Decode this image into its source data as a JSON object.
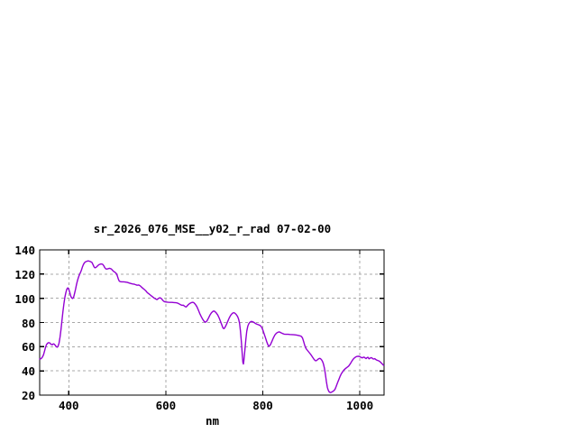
{
  "chart_data": {
    "type": "line",
    "title": "sr_2026_076_MSE__y02_r_rad 07-02-00",
    "xlabel": "nm",
    "ylabel": "",
    "xlim": [
      340,
      1050
    ],
    "ylim": [
      20,
      140
    ],
    "grid": true,
    "legend_position": "none",
    "line_color": "#9400d3",
    "grid_color": "#a8a8a8",
    "border_color": "#000000",
    "x_ticks": [
      {
        "value": 400,
        "label": "400",
        "grid": true
      },
      {
        "value": 600,
        "label": "600",
        "grid": true
      },
      {
        "value": 800,
        "label": "800",
        "grid": true
      },
      {
        "value": 1000,
        "label": "1000",
        "grid": true
      }
    ],
    "y_ticks": [
      {
        "value": 20,
        "label": "20",
        "grid": false
      },
      {
        "value": 40,
        "label": "40",
        "grid": true
      },
      {
        "value": 60,
        "label": "60",
        "grid": true
      },
      {
        "value": 80,
        "label": "80",
        "grid": true
      },
      {
        "value": 100,
        "label": "100",
        "grid": true
      },
      {
        "value": 120,
        "label": "120",
        "grid": true
      },
      {
        "value": 140,
        "label": "140",
        "grid": false
      }
    ],
    "series": [
      {
        "points": [
          [
            340,
            49.8
          ],
          [
            342,
            50.0
          ],
          [
            344,
            50.6
          ],
          [
            346,
            51.6
          ],
          [
            348,
            53.4
          ],
          [
            350,
            56.4
          ],
          [
            352,
            59.4
          ],
          [
            354,
            61.6
          ],
          [
            356,
            62.8
          ],
          [
            358,
            63.3
          ],
          [
            360,
            63.3
          ],
          [
            362,
            62.6
          ],
          [
            364,
            61.8
          ],
          [
            366,
            61.6
          ],
          [
            368,
            62.3
          ],
          [
            370,
            62.2
          ],
          [
            372,
            61.2
          ],
          [
            374,
            60.0
          ],
          [
            376,
            59.6
          ],
          [
            378,
            60.4
          ],
          [
            380,
            63.0
          ],
          [
            382,
            68.0
          ],
          [
            384,
            74.5
          ],
          [
            386,
            81.5
          ],
          [
            388,
            89.0
          ],
          [
            390,
            95.5
          ],
          [
            392,
            101.0
          ],
          [
            394,
            104.8
          ],
          [
            396,
            107.5
          ],
          [
            398,
            108.6
          ],
          [
            400,
            107.4
          ],
          [
            402,
            104.8
          ],
          [
            404,
            102.0
          ],
          [
            406,
            100.3
          ],
          [
            408,
            99.8
          ],
          [
            410,
            101.0
          ],
          [
            412,
            104.0
          ],
          [
            414,
            107.5
          ],
          [
            416,
            111.5
          ],
          [
            418,
            114.8
          ],
          [
            420,
            117.3
          ],
          [
            422,
            119.4
          ],
          [
            424,
            121.2
          ],
          [
            426,
            123.2
          ],
          [
            428,
            125.6
          ],
          [
            430,
            127.7
          ],
          [
            432,
            129.2
          ],
          [
            434,
            130.0
          ],
          [
            436,
            130.4
          ],
          [
            438,
            130.7
          ],
          [
            440,
            130.9
          ],
          [
            442,
            130.7
          ],
          [
            444,
            130.4
          ],
          [
            446,
            130.1
          ],
          [
            448,
            129.5
          ],
          [
            450,
            127.8
          ],
          [
            452,
            126.0
          ],
          [
            454,
            125.2
          ],
          [
            456,
            125.5
          ],
          [
            458,
            126.2
          ],
          [
            460,
            127.0
          ],
          [
            462,
            127.7
          ],
          [
            464,
            128.1
          ],
          [
            466,
            128.3
          ],
          [
            468,
            128.3
          ],
          [
            470,
            128.1
          ],
          [
            472,
            127.0
          ],
          [
            474,
            125.5
          ],
          [
            476,
            124.4
          ],
          [
            478,
            124.1
          ],
          [
            480,
            124.3
          ],
          [
            482,
            124.6
          ],
          [
            484,
            124.8
          ],
          [
            486,
            124.5
          ],
          [
            488,
            124.1
          ],
          [
            490,
            123.2
          ],
          [
            492,
            122.3
          ],
          [
            494,
            121.8
          ],
          [
            496,
            121.3
          ],
          [
            498,
            120.5
          ],
          [
            500,
            118.6
          ],
          [
            502,
            116.1
          ],
          [
            504,
            114.3
          ],
          [
            506,
            113.8
          ],
          [
            509,
            113.6
          ],
          [
            513,
            113.6
          ],
          [
            517,
            113.4
          ],
          [
            521,
            113.1
          ],
          [
            525,
            112.6
          ],
          [
            529,
            112.1
          ],
          [
            532,
            111.8
          ],
          [
            535,
            111.7
          ],
          [
            538,
            111.2
          ],
          [
            541,
            110.8
          ],
          [
            544,
            111.0
          ],
          [
            547,
            110.3
          ],
          [
            550,
            109.2
          ],
          [
            553,
            108.2
          ],
          [
            556,
            107.2
          ],
          [
            559,
            106.1
          ],
          [
            562,
            104.7
          ],
          [
            565,
            103.7
          ],
          [
            568,
            102.7
          ],
          [
            571,
            101.8
          ],
          [
            574,
            100.8
          ],
          [
            577,
            100.0
          ],
          [
            580,
            99.2
          ],
          [
            582,
            98.9
          ],
          [
            584,
            99.6
          ],
          [
            586,
            100.2
          ],
          [
            588,
            100.4
          ],
          [
            590,
            100.1
          ],
          [
            592,
            99.2
          ],
          [
            594,
            98.2
          ],
          [
            596,
            97.5
          ],
          [
            598,
            97.1
          ],
          [
            601,
            96.9
          ],
          [
            605,
            96.7
          ],
          [
            609,
            96.6
          ],
          [
            613,
            96.6
          ],
          [
            617,
            96.5
          ],
          [
            621,
            96.3
          ],
          [
            624,
            96.1
          ],
          [
            627,
            95.5
          ],
          [
            630,
            94.8
          ],
          [
            633,
            94.2
          ],
          [
            636,
            94.3
          ],
          [
            638,
            93.7
          ],
          [
            640,
            93.1
          ],
          [
            642,
            92.8
          ],
          [
            644,
            93.7
          ],
          [
            647,
            95.0
          ],
          [
            650,
            95.9
          ],
          [
            653,
            96.5
          ],
          [
            656,
            96.7
          ],
          [
            658,
            96.3
          ],
          [
            661,
            95.0
          ],
          [
            664,
            93.2
          ],
          [
            667,
            90.5
          ],
          [
            670,
            87.5
          ],
          [
            673,
            84.9
          ],
          [
            676,
            82.7
          ],
          [
            679,
            81.0
          ],
          [
            681,
            80.2
          ],
          [
            683,
            80.5
          ],
          [
            685,
            81.4
          ],
          [
            688,
            83.6
          ],
          [
            691,
            86.0
          ],
          [
            694,
            88.0
          ],
          [
            697,
            89.2
          ],
          [
            699,
            89.5
          ],
          [
            701,
            89.2
          ],
          [
            704,
            88.0
          ],
          [
            707,
            86.2
          ],
          [
            710,
            83.7
          ],
          [
            713,
            80.7
          ],
          [
            716,
            77.5
          ],
          [
            718,
            75.4
          ],
          [
            720,
            74.9
          ],
          [
            722,
            75.9
          ],
          [
            725,
            78.3
          ],
          [
            728,
            81.3
          ],
          [
            731,
            84.0
          ],
          [
            734,
            86.1
          ],
          [
            737,
            87.5
          ],
          [
            740,
            88.1
          ],
          [
            742,
            87.8
          ],
          [
            745,
            86.7
          ],
          [
            748,
            85.0
          ],
          [
            750,
            82.9
          ],
          [
            752,
            79.5
          ],
          [
            754,
            73.0
          ],
          [
            756,
            63.5
          ],
          [
            758,
            51.5
          ],
          [
            759,
            47.0
          ],
          [
            760,
            45.7
          ],
          [
            761,
            48.5
          ],
          [
            763,
            57.0
          ],
          [
            765,
            66.0
          ],
          [
            767,
            72.8
          ],
          [
            769,
            76.8
          ],
          [
            771,
            78.9
          ],
          [
            773,
            80.1
          ],
          [
            776,
            80.9
          ],
          [
            779,
            80.7
          ],
          [
            782,
            80.0
          ],
          [
            785,
            79.2
          ],
          [
            788,
            78.6
          ],
          [
            791,
            78.1
          ],
          [
            794,
            77.6
          ],
          [
            796,
            77.0
          ],
          [
            798,
            75.8
          ],
          [
            800,
            73.9
          ],
          [
            802,
            71.4
          ],
          [
            805,
            67.9
          ],
          [
            808,
            64.3
          ],
          [
            810,
            62.0
          ],
          [
            812,
            60.4
          ],
          [
            814,
            60.7
          ],
          [
            816,
            61.9
          ],
          [
            819,
            64.6
          ],
          [
            822,
            67.4
          ],
          [
            825,
            69.7
          ],
          [
            828,
            71.2
          ],
          [
            831,
            71.9
          ],
          [
            833,
            72.2
          ],
          [
            835,
            72.1
          ],
          [
            838,
            71.4
          ],
          [
            841,
            70.8
          ],
          [
            844,
            70.4
          ],
          [
            848,
            70.2
          ],
          [
            852,
            70.2
          ],
          [
            856,
            70.1
          ],
          [
            860,
            70.0
          ],
          [
            864,
            69.9
          ],
          [
            868,
            69.7
          ],
          [
            872,
            69.4
          ],
          [
            875,
            69.1
          ],
          [
            878,
            68.8
          ],
          [
            880,
            68.3
          ],
          [
            882,
            67.1
          ],
          [
            884,
            64.5
          ],
          [
            886,
            61.7
          ],
          [
            888,
            59.4
          ],
          [
            890,
            58.0
          ],
          [
            893,
            56.5
          ],
          [
            896,
            55.0
          ],
          [
            899,
            53.5
          ],
          [
            902,
            51.7
          ],
          [
            905,
            49.9
          ],
          [
            907,
            48.9
          ],
          [
            909,
            48.3
          ],
          [
            911,
            48.6
          ],
          [
            913,
            49.4
          ],
          [
            915,
            50.0
          ],
          [
            917,
            50.3
          ],
          [
            919,
            50.1
          ],
          [
            921,
            49.2
          ],
          [
            923,
            47.9
          ],
          [
            925,
            45.9
          ],
          [
            927,
            42.4
          ],
          [
            929,
            37.4
          ],
          [
            931,
            31.4
          ],
          [
            933,
            26.4
          ],
          [
            935,
            24.0
          ],
          [
            937,
            22.6
          ],
          [
            939,
            22.1
          ],
          [
            941,
            22.3
          ],
          [
            943,
            22.7
          ],
          [
            945,
            23.2
          ],
          [
            947,
            23.9
          ],
          [
            949,
            25.0
          ],
          [
            951,
            26.8
          ],
          [
            953,
            29.0
          ],
          [
            955,
            31.2
          ],
          [
            957,
            33.2
          ],
          [
            959,
            35.1
          ],
          [
            961,
            36.9
          ],
          [
            963,
            38.3
          ],
          [
            965,
            39.5
          ],
          [
            967,
            40.6
          ],
          [
            969,
            41.4
          ],
          [
            971,
            42.1
          ],
          [
            973,
            42.7
          ],
          [
            975,
            43.3
          ],
          [
            977,
            44.0
          ],
          [
            979,
            45.1
          ],
          [
            981,
            46.3
          ],
          [
            983,
            47.7
          ],
          [
            985,
            48.9
          ],
          [
            987,
            50.0
          ],
          [
            989,
            50.8
          ],
          [
            991,
            51.4
          ],
          [
            993,
            51.8
          ],
          [
            995,
            52.0
          ],
          [
            997,
            52.1
          ],
          [
            999,
            51.9
          ],
          [
            1001,
            51.6
          ],
          [
            1003,
            51.1
          ],
          [
            1005,
            50.8
          ],
          [
            1007,
            51.2
          ],
          [
            1009,
            51.4
          ],
          [
            1011,
            50.7
          ],
          [
            1013,
            50.2
          ],
          [
            1015,
            51.0
          ],
          [
            1017,
            51.2
          ],
          [
            1019,
            50.0
          ],
          [
            1021,
            50.5
          ],
          [
            1023,
            50.9
          ],
          [
            1025,
            50.8
          ],
          [
            1027,
            50.0
          ],
          [
            1029,
            49.9
          ],
          [
            1031,
            50.1
          ],
          [
            1033,
            49.4
          ],
          [
            1035,
            48.9
          ],
          [
            1037,
            48.6
          ],
          [
            1039,
            48.3
          ],
          [
            1041,
            47.8
          ],
          [
            1043,
            47.1
          ],
          [
            1045,
            46.3
          ],
          [
            1047,
            45.4
          ],
          [
            1049,
            44.6
          ]
        ]
      }
    ]
  }
}
